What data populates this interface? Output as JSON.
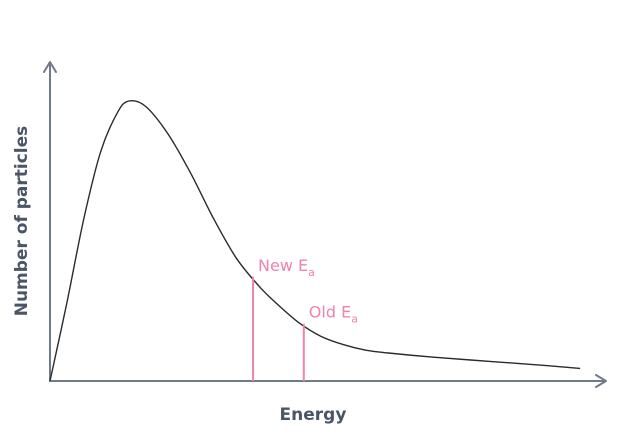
{
  "chart_data": {
    "type": "line",
    "title": "",
    "xlabel": "Energy",
    "ylabel": "Number of particles",
    "grid": false,
    "series": [
      {
        "points": [
          [
            0.0,
            0.0
          ],
          [
            0.03,
            0.28
          ],
          [
            0.06,
            0.58
          ],
          [
            0.09,
            0.82
          ],
          [
            0.12,
            0.96
          ],
          [
            0.14,
            1.0
          ],
          [
            0.17,
            0.98
          ],
          [
            0.21,
            0.88
          ],
          [
            0.25,
            0.74
          ],
          [
            0.29,
            0.58
          ],
          [
            0.33,
            0.44
          ],
          [
            0.37,
            0.34
          ],
          [
            0.4,
            0.28
          ],
          [
            0.44,
            0.21
          ],
          [
            0.48,
            0.16
          ],
          [
            0.52,
            0.13
          ],
          [
            0.56,
            0.11
          ],
          [
            0.6,
            0.1
          ],
          [
            0.68,
            0.085
          ],
          [
            0.78,
            0.07
          ],
          [
            0.88,
            0.055
          ],
          [
            0.94,
            0.045
          ]
        ]
      }
    ],
    "annotations": [
      {
        "key": "new",
        "x": 0.36,
        "label_main": "New E",
        "label_sub": "a",
        "color": "#f083ad"
      },
      {
        "key": "old",
        "x": 0.45,
        "label_main": "Old E",
        "label_sub": "a",
        "color": "#f083ad"
      }
    ],
    "colors": {
      "axis": "#6f7a8a",
      "curve": "#2b2b2b",
      "marker": "#f083ad"
    }
  }
}
